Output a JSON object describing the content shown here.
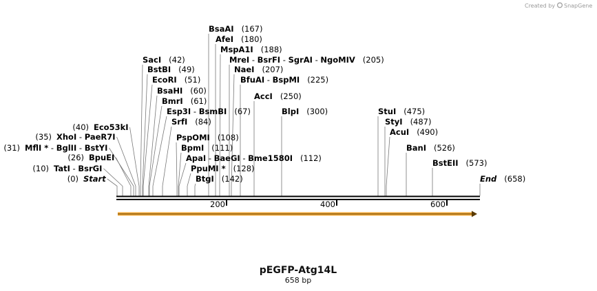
{
  "credit": {
    "prefix": "Created by",
    "brand": "SnapGene"
  },
  "plasmid": {
    "name": "pEGFP-Atg14L",
    "length_label": "658 bp"
  },
  "ruler": {
    "ticks": [
      "200",
      "400",
      "600"
    ]
  },
  "features": [
    {
      "name": "orf-arrow",
      "color": "#f2a93b"
    }
  ],
  "sites": [
    {
      "parts": [
        "BsaAI"
      ],
      "pos": "(167)"
    },
    {
      "parts": [
        "AfeI"
      ],
      "pos": "(180)"
    },
    {
      "parts": [
        "MspA1I"
      ],
      "pos": "(188)"
    },
    {
      "parts": [
        "MreI",
        " - ",
        "BsrFI",
        " - ",
        "SgrAI",
        " - ",
        "NgoMIV"
      ],
      "pos": "(205)"
    },
    {
      "parts": [
        "NaeI"
      ],
      "pos": "(207)"
    },
    {
      "parts": [
        "BfuAI",
        " - ",
        "BspMI"
      ],
      "pos": "(225)"
    },
    {
      "parts": [
        "AccI"
      ],
      "pos": "(250)"
    },
    {
      "parts": [
        "SacI"
      ],
      "pos": "(42)"
    },
    {
      "parts": [
        "BstBI"
      ],
      "pos": "(49)"
    },
    {
      "parts": [
        "EcoRI"
      ],
      "pos": "(51)"
    },
    {
      "parts": [
        "BsaHI"
      ],
      "pos": "(60)"
    },
    {
      "parts": [
        "BmrI"
      ],
      "pos": "(61)"
    },
    {
      "parts": [
        "Esp3I",
        " - ",
        "BsmBI"
      ],
      "pos": "(67)"
    },
    {
      "parts": [
        "SrfI"
      ],
      "pos": "(84)"
    },
    {
      "parts": [
        "BlpI"
      ],
      "pos": "(300)"
    },
    {
      "parts": [
        "StuI"
      ],
      "pos": "(475)"
    },
    {
      "parts": [
        "StyI"
      ],
      "pos": "(487)"
    },
    {
      "parts": [
        "AcuI"
      ],
      "pos": "(490)"
    },
    {
      "parts": [
        "BanI"
      ],
      "pos": "(526)"
    },
    {
      "parts": [
        "BstEII"
      ],
      "pos": "(573)"
    },
    {
      "parts": [
        "Eco53kI"
      ],
      "pos": "(40)"
    },
    {
      "parts": [
        "XhoI",
        " - ",
        "PaeR7I"
      ],
      "pos": "(35)"
    },
    {
      "parts": [
        "MflI *",
        " - ",
        "BglII",
        " - ",
        "BstYI"
      ],
      "pos": "(31)"
    },
    {
      "parts": [
        "BpuEI"
      ],
      "pos": "(26)"
    },
    {
      "parts": [
        "TatI",
        " - ",
        "BsrGI"
      ],
      "pos": "(10)"
    },
    {
      "parts": [
        "Start"
      ],
      "pos": "(0)"
    },
    {
      "parts": [
        "PspOMI"
      ],
      "pos": "(108)"
    },
    {
      "parts": [
        "BpmI"
      ],
      "pos": "(111)"
    },
    {
      "parts": [
        "ApaI",
        " - ",
        "BaeGI",
        " - ",
        "Bme1580I"
      ],
      "pos": "(112)"
    },
    {
      "parts": [
        "PpuMI *"
      ],
      "pos": "(128)"
    },
    {
      "parts": [
        "BtgI"
      ],
      "pos": "(142)"
    },
    {
      "parts": [
        "End"
      ],
      "pos": "(658)"
    }
  ]
}
